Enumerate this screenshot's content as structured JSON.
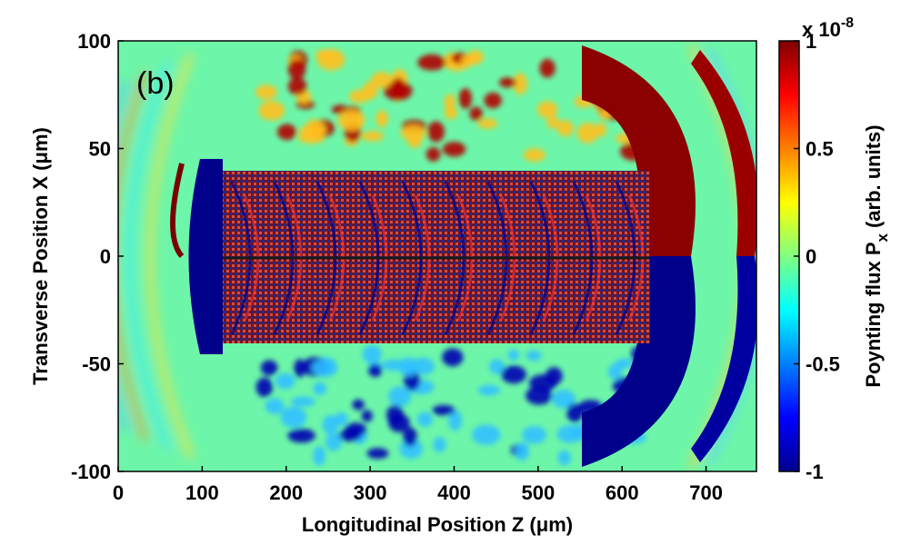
{
  "chart_data": {
    "type": "heatmap",
    "panel_label": "(b)",
    "xlabel": "Longitudinal Position Z (μm)",
    "ylabel": "Transverse Position X (μm)",
    "xlim": [
      0,
      760
    ],
    "ylim": [
      -100,
      100
    ],
    "x_ticks": [
      0,
      100,
      200,
      300,
      400,
      500,
      600,
      700
    ],
    "y_ticks": [
      -100,
      -50,
      0,
      50,
      100
    ],
    "colorbar": {
      "label": "Poynting flux P",
      "label_subscript": "x",
      "label_units": "(arb. units)",
      "multiplier": "x 10",
      "exponent": "-8",
      "range": [
        -1,
        1
      ],
      "ticks": [
        -1,
        -0.5,
        0,
        0.5,
        1
      ],
      "tick_labels": [
        "-1",
        "-0.5",
        "0",
        "0.5",
        "1"
      ],
      "colormap": "jet"
    },
    "grid": false
  }
}
